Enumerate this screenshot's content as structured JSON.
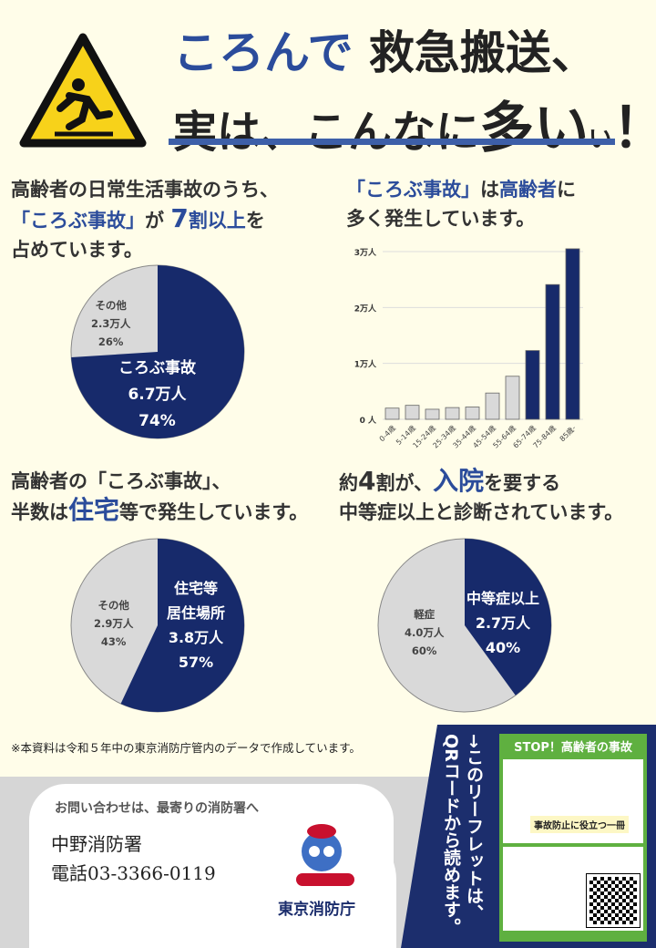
{
  "header": {
    "title_blue": "ころんで",
    "title_rest": "救急搬送、",
    "title2_a": "実は、こんなに",
    "title2_big": "多い",
    "title2_excl": "！"
  },
  "sec1": {
    "l1": "高齢者の日常生活事故のうち、",
    "l2a": "「ころぶ事故」",
    "l2b": "が",
    "l2c": "7",
    "l2d": "割以上",
    "l2e": "を",
    "l3": "占めています。"
  },
  "sec2": {
    "l1a": "「ころぶ事故」",
    "l1b": "は",
    "l1c": "高齢者",
    "l1d": "に",
    "l2": "多く発生しています。"
  },
  "sec3": {
    "l1": "高齢者の「ころぶ事故」、",
    "l2a": "半数は",
    "l2b": "住宅",
    "l2c": "等で発生しています。"
  },
  "sec4": {
    "l1a": "約",
    "l1b": "4",
    "l1c": "割が、",
    "l1d": "入院",
    "l1e": "を要する",
    "l2a": "中等症以上",
    "l2b": "と診断されています。"
  },
  "colors": {
    "navy": "#172a6b",
    "gray": "#d9d9d9",
    "blue": "#2b4c9b",
    "green": "#5fb040"
  },
  "chart_data": [
    {
      "type": "pie",
      "slices": [
        {
          "label": "ころぶ事故",
          "value_text": "6.7万人",
          "percent": 74
        },
        {
          "label": "その他",
          "value_text": "2.3万人",
          "percent": 26
        }
      ]
    },
    {
      "type": "bar",
      "categories": [
        "0-4歳",
        "5-14歳",
        "15-24歳",
        "25-34歳",
        "35-44歳",
        "45-54歳",
        "55-64歳",
        "65-74歳",
        "75-84歳",
        "85歳-"
      ],
      "values": [
        2000,
        2500,
        1800,
        2100,
        2200,
        4700,
        7700,
        12300,
        24100,
        30500
      ],
      "highlight_from": "65-74歳",
      "yticks": [
        {
          "v": 0,
          "label": "0 人"
        },
        {
          "v": 10000,
          "label": "1万人"
        },
        {
          "v": 20000,
          "label": "2万人"
        },
        {
          "v": 30000,
          "label": "3万人"
        }
      ],
      "ylim": [
        0,
        30000
      ],
      "grid": true
    },
    {
      "type": "pie",
      "slices": [
        {
          "label": "住宅等\n居住場所",
          "value_text": "3.8万人",
          "percent": 57
        },
        {
          "label": "その他",
          "value_text": "2.9万人",
          "percent": 43
        }
      ]
    },
    {
      "type": "pie",
      "slices": [
        {
          "label": "中等症以上",
          "value_text": "2.7万人",
          "percent": 40
        },
        {
          "label": "軽症",
          "value_text": "4.0万人",
          "percent": 60
        }
      ]
    }
  ],
  "footnote": "※本資料は令和５年中の東京消防庁管内のデータで作成しています。",
  "contact": {
    "lead": "お問い合わせは、最寄りの消防署へ",
    "station": "中野消防署",
    "phone": "電話03-3366-0119",
    "org": "東京消防庁"
  },
  "qr": {
    "text": "→このリーフレットは、QRコードから読めます。",
    "book_title": "STOP！高齢者の事故",
    "book_sub": "事故防止に役立つ一冊"
  }
}
